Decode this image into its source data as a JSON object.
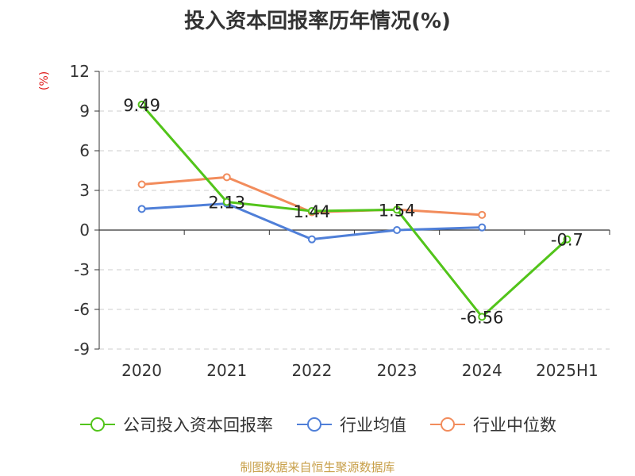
{
  "chart_data": {
    "type": "line",
    "title": "投入资本回报率历年情况(%)",
    "ylabel": "(%)",
    "xlabel": "",
    "categories": [
      "2020",
      "2021",
      "2022",
      "2023",
      "2024",
      "2025H1"
    ],
    "ylim": [
      -9,
      12
    ],
    "yticks": [
      12,
      9,
      6,
      3,
      0,
      -3,
      -6,
      -9
    ],
    "grid": true,
    "legend_position": "bottom",
    "series": [
      {
        "name": "公司投入资本回报率",
        "color": "#52c41a",
        "values": [
          9.49,
          2.13,
          1.44,
          1.54,
          -6.56,
          -0.7
        ],
        "labels": [
          "9.49",
          "2.13",
          "1.44",
          "1.54",
          "-6.56",
          "-0.7"
        ]
      },
      {
        "name": "行业均值",
        "color": "#4f7fd8",
        "values": [
          1.6,
          2.0,
          -0.7,
          0.0,
          0.2,
          null
        ]
      },
      {
        "name": "行业中位数",
        "color": "#f28c5c",
        "values": [
          3.45,
          4.0,
          1.35,
          1.55,
          1.15,
          null
        ]
      }
    ]
  },
  "footer": {
    "source": "制图数据来自恒生聚源数据库"
  }
}
